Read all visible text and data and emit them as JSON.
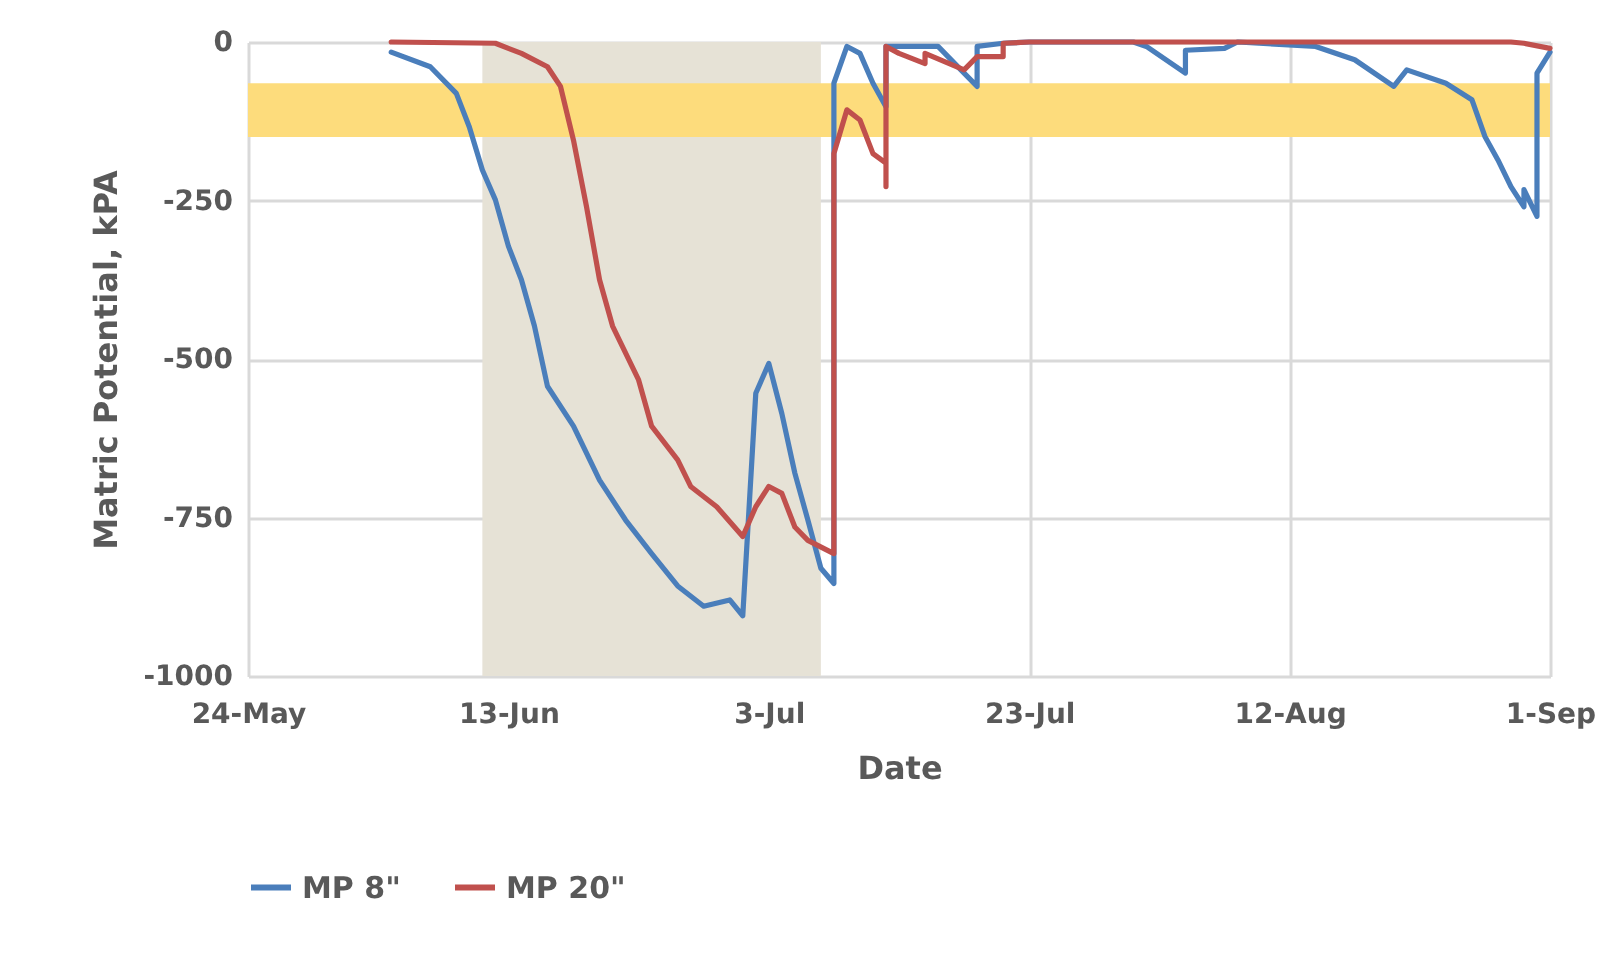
{
  "chart_data": {
    "type": "line",
    "xlabel": "Date",
    "ylabel": "Matric Potential, kPA",
    "xlim": [
      "--05-24",
      "--09-01"
    ],
    "xticks": [
      {
        "value": "--05-24",
        "label": "24-May"
      },
      {
        "value": "--06-13",
        "label": "13-Jun"
      },
      {
        "value": "--07-03",
        "label": "3-Jul"
      },
      {
        "value": "--07-23",
        "label": "23-Jul"
      },
      {
        "value": "--08-12",
        "label": "12-Aug"
      },
      {
        "value": "--09-01",
        "label": "1-Sep"
      }
    ],
    "ylim": [
      -1000,
      0
    ],
    "yticks": [
      {
        "value": -1000,
        "label": "-1000"
      },
      {
        "value": -750,
        "label": "-750"
      },
      {
        "value": -500,
        "label": "-500"
      },
      {
        "value": -250,
        "label": "-250"
      },
      {
        "value": 0,
        "label": "0"
      }
    ],
    "grid": true,
    "legend": "bottom",
    "line_style": "solid",
    "marker": "none",
    "bands": [
      {
        "axis": "x",
        "from": "--06-11",
        "to": "--07-07",
        "color": "#e6e2d6"
      },
      {
        "axis": "y",
        "from": -150,
        "to": -65,
        "color": "#fddc7c"
      }
    ],
    "series": [
      {
        "name": "MP 8\"",
        "color": "#4a7ebb",
        "x": [
          "--06-04",
          "--06-07",
          "--06-09",
          "--06-10",
          "--06-11",
          "--06-12",
          "--06-13",
          "--06-14",
          "--06-15",
          "--06-16",
          "--06-18",
          "--06-20",
          "--06-22",
          "--06-24",
          "--06-26",
          "--06-28",
          "--06-30",
          "--07-01",
          "--07-02",
          "--07-03",
          "--07-04",
          "--07-05",
          "--07-06",
          "--07-07",
          "--07-08",
          "--07-08",
          "--07-09",
          "--07-10",
          "--07-11",
          "--07-12",
          "--07-12",
          "--07-16",
          "--07-18",
          "--07-19",
          "--07-19",
          "--07-21",
          "--07-23",
          "--07-31",
          "--08-01",
          "--08-04",
          "--08-04",
          "--08-07",
          "--08-08",
          "--08-14",
          "--08-17",
          "--08-20",
          "--08-21",
          "--08-24",
          "--08-26",
          "--08-27",
          "--08-28",
          "--08-29",
          "--08-30",
          "--08-30",
          "--08-31",
          "--08-31",
          "--09-01"
        ],
        "values": [
          -16,
          -39,
          -81,
          -134,
          -202,
          -249,
          -322,
          -375,
          -448,
          -543,
          -606,
          -691,
          -754,
          -807,
          -858,
          -890,
          -880,
          -905,
          -554,
          -507,
          -586,
          -680,
          -754,
          -830,
          -854,
          -65,
          -7,
          -18,
          -65,
          -102,
          -7,
          -7,
          -49,
          -70,
          -7,
          -2,
          0,
          0,
          -7,
          -49,
          -13,
          -10,
          0,
          -7,
          -28,
          -70,
          -44,
          -65,
          -91,
          -149,
          -186,
          -228,
          -260,
          -233,
          -275,
          -49,
          -16
        ]
      },
      {
        "name": "MP 20\"",
        "color": "#c0504d",
        "x": [
          "--06-04",
          "--06-12",
          "--06-14",
          "--06-16",
          "--06-17",
          "--06-18",
          "--06-19",
          "--06-20",
          "--06-21",
          "--06-23",
          "--06-24",
          "--06-26",
          "--06-27",
          "--06-29",
          "--07-01",
          "--07-02",
          "--07-03",
          "--07-04",
          "--07-05",
          "--07-06",
          "--07-08",
          "--07-08",
          "--07-09",
          "--07-10",
          "--07-11",
          "--07-12",
          "--07-12",
          "--07-12",
          "--07-13",
          "--07-15",
          "--07-15",
          "--07-18",
          "--07-19",
          "--07-21",
          "--07-21",
          "--07-23",
          "--08-29",
          "--08-30",
          "--09-01"
        ],
        "values": [
          0,
          -2,
          -18,
          -39,
          -70,
          -155,
          -260,
          -375,
          -448,
          -533,
          -606,
          -659,
          -701,
          -733,
          -780,
          -733,
          -701,
          -712,
          -765,
          -786,
          -807,
          -176,
          -107,
          -123,
          -176,
          -191,
          -228,
          -7,
          -18,
          -34,
          -18,
          -44,
          -23,
          -23,
          -2,
          0,
          0,
          -2,
          -10
        ]
      }
    ]
  }
}
